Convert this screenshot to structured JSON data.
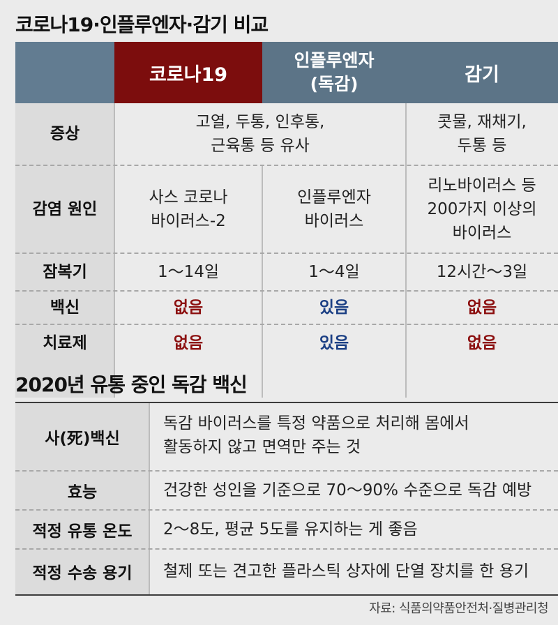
{
  "comparison": {
    "title": "코로나19·인플루엔자·감기 비교",
    "headers": {
      "covid": "코로나19",
      "flu_line1": "인플루엔자",
      "flu_line2": "(독감)",
      "cold": "감기"
    },
    "rows": {
      "symptoms": {
        "label": "증상",
        "shared_line1": "고열, 두통, 인후통,",
        "shared_line2": "근육통 등 유사",
        "cold_line1": "콧물, 재채기,",
        "cold_line2": "두통 등"
      },
      "cause": {
        "label": "감염 원인",
        "covid_line1": "사스 코로나",
        "covid_line2": "바이러스-2",
        "flu_line1": "인플루엔자",
        "flu_line2": "바이러스",
        "cold_line1": "리노바이러스 등",
        "cold_line2": "200가지 이상의",
        "cold_line3": "바이러스"
      },
      "incubation": {
        "label": "잠복기",
        "covid": "1～14일",
        "flu": "1～4일",
        "cold": "12시간～3일"
      },
      "vaccine": {
        "label": "백신",
        "covid": "없음",
        "flu": "있음",
        "cold": "없음"
      },
      "treatment": {
        "label": "치료제",
        "covid": "없음",
        "flu": "있음",
        "cold": "없음"
      }
    },
    "colors": {
      "covid_header": "#7c0d0d",
      "header": "#5c7487",
      "none_text": "#8c1010",
      "yes_text": "#1b3f84"
    }
  },
  "vaccine_info": {
    "title": "2020년 유통 중인 독감 백신",
    "rows": [
      {
        "label": "사(死)백신",
        "line1": "독감 바이러스를 특정 약품으로 처리해 몸에서",
        "line2": "활동하지 않고 면역만 주는 것"
      },
      {
        "label": "효능",
        "line1": "건강한 성인을 기준으로 70～90% 수준으로 독감 예방"
      },
      {
        "label": "적정 유통 온도",
        "line1": "2～8도, 평균 5도를 유지하는 게 좋음"
      },
      {
        "label": "적정 수송 용기",
        "line1": "철제 또는 견고한 플라스틱 상자에 단열 장치를 한 용기"
      }
    ]
  },
  "source": "자료: 식품의약품안전처·질병관리청"
}
